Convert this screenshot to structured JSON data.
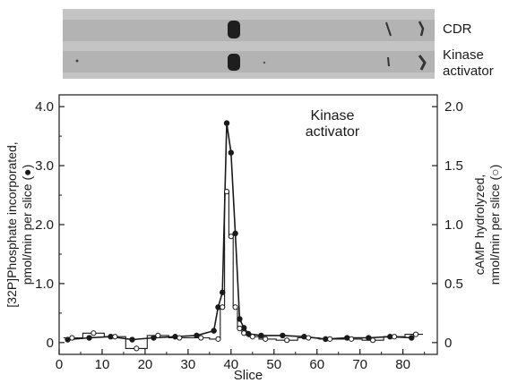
{
  "gel": {
    "lanes": [
      {
        "label": "CDR"
      },
      {
        "label": "Kinase\nactivator"
      }
    ]
  },
  "chart_data": {
    "type": "line",
    "title": "",
    "annotation": "Kinase\nactivator",
    "xlabel": "Slice",
    "ylabel_left": "[32P]Phosphate incorporated,\npmol/min per slice (●)",
    "ylabel_right": "cAMP hydrolyzed,\nnmol/min per slice (○)",
    "xlim": [
      0,
      88
    ],
    "ylim_left": [
      -0.2,
      4.2
    ],
    "ylim_right": [
      -0.1,
      2.1
    ],
    "xticks": [
      0,
      10,
      20,
      30,
      40,
      50,
      60,
      70,
      80
    ],
    "yticks_left": [
      0,
      1.0,
      2.0,
      3.0,
      4.0
    ],
    "yticks_left_labels": [
      "0",
      "1.0",
      "2.0",
      "3.0",
      "4.0"
    ],
    "yticks_right": [
      0,
      0.5,
      1.0,
      1.5,
      2.0
    ],
    "yticks_right_labels": [
      "0",
      "0.5",
      "1.0",
      "1.5",
      "2.0"
    ],
    "grid": false,
    "series": [
      {
        "axis": "left",
        "marker": "filled-circle",
        "points": [
          [
            2,
            0.05
          ],
          [
            7,
            0.08
          ],
          [
            12,
            0.1
          ],
          [
            17,
            0.05
          ],
          [
            22,
            0.08
          ],
          [
            27,
            0.1
          ],
          [
            32,
            0.12
          ],
          [
            36,
            0.2
          ],
          [
            37,
            0.6
          ],
          [
            38,
            0.85
          ],
          [
            39,
            3.72
          ],
          [
            40,
            3.22
          ],
          [
            41,
            1.85
          ],
          [
            42,
            0.4
          ],
          [
            43,
            0.25
          ],
          [
            44,
            0.15
          ],
          [
            47,
            0.12
          ],
          [
            52,
            0.12
          ],
          [
            57,
            0.1
          ],
          [
            62,
            0.06
          ],
          [
            67,
            0.08
          ],
          [
            72,
            0.08
          ],
          [
            77,
            0.1
          ],
          [
            82,
            0.08
          ]
        ]
      },
      {
        "axis": "right",
        "marker": "open-circle",
        "points": [
          [
            3,
            0.04
          ],
          [
            8,
            0.08
          ],
          [
            13,
            0.05
          ],
          [
            18,
            -0.05
          ],
          [
            23,
            0.06
          ],
          [
            28,
            0.04
          ],
          [
            33,
            0.04
          ],
          [
            37,
            0.03
          ],
          [
            38,
            0.3
          ],
          [
            39,
            1.28
          ],
          [
            40,
            0.9
          ],
          [
            41,
            0.3
          ],
          [
            42,
            0.12
          ],
          [
            43,
            0.08
          ],
          [
            45,
            0.05
          ],
          [
            48,
            0.03
          ],
          [
            53,
            0.02
          ],
          [
            58,
            0.04
          ],
          [
            63,
            0.03
          ],
          [
            68,
            0.03
          ],
          [
            73,
            0.02
          ],
          [
            78,
            0.05
          ],
          [
            83,
            0.07
          ]
        ]
      }
    ]
  }
}
